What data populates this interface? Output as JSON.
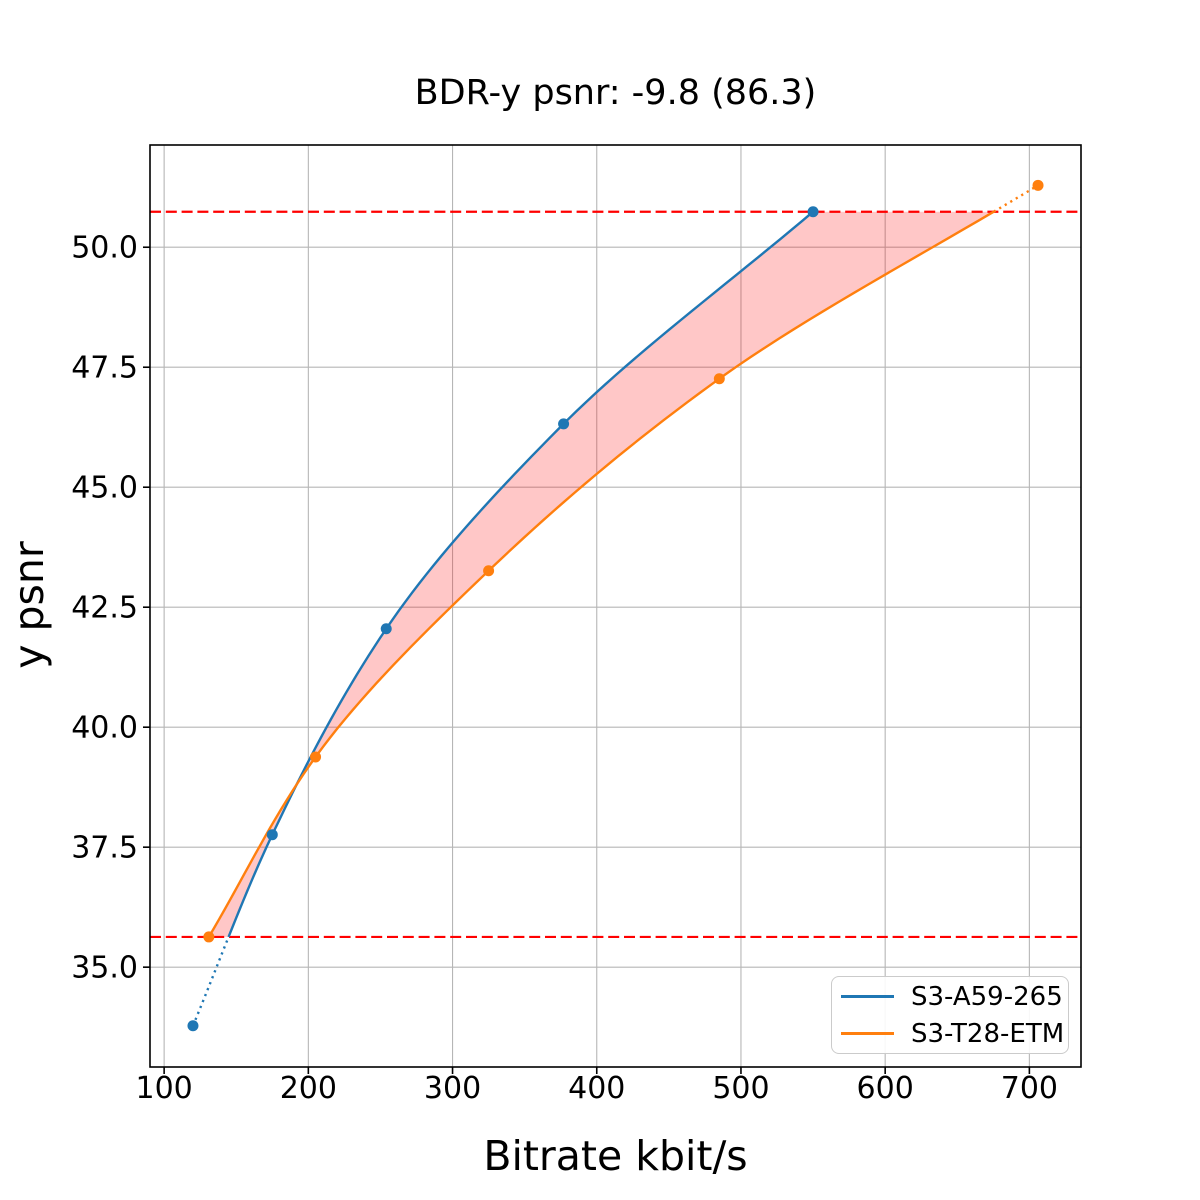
{
  "chart_data": {
    "type": "line",
    "title": "BDR-y psnr: -9.8 (86.3)",
    "xlabel": "Bitrate kbit/s",
    "ylabel": "y psnr",
    "xlim": [
      90.2,
      735.8
    ],
    "ylim": [
      32.92,
      52.13
    ],
    "grid": true,
    "grid_color": "#b6b6b6",
    "xticks": [
      {
        "value": 100,
        "label": "100"
      },
      {
        "value": 200,
        "label": "200"
      },
      {
        "value": 300,
        "label": "300"
      },
      {
        "value": 400,
        "label": "400"
      },
      {
        "value": 500,
        "label": "500"
      },
      {
        "value": 600,
        "label": "600"
      },
      {
        "value": 700,
        "label": "700"
      }
    ],
    "yticks": [
      {
        "value": 35.0,
        "label": "35.0"
      },
      {
        "value": 37.5,
        "label": "37.5"
      },
      {
        "value": 40.0,
        "label": "40.0"
      },
      {
        "value": 42.5,
        "label": "42.5"
      },
      {
        "value": 45.0,
        "label": "45.0"
      },
      {
        "value": 47.5,
        "label": "47.5"
      },
      {
        "value": 50.0,
        "label": "50.0"
      }
    ],
    "series": [
      {
        "name": "S3-A59-265",
        "color": "#1f77b4",
        "marker": "circle",
        "x": [
          120,
          175,
          254,
          377,
          550
        ],
        "y": [
          33.78,
          37.76,
          42.05,
          46.32,
          50.74
        ]
      },
      {
        "name": "S3-T28-ETM",
        "color": "#ff7f0e",
        "marker": "circle",
        "x": [
          131,
          205,
          325,
          485,
          706
        ],
        "y": [
          35.63,
          39.38,
          43.26,
          47.26,
          51.29
        ]
      }
    ],
    "bd_overlap_psnr": {
      "lower": 35.63,
      "upper": 50.74
    },
    "bound_line_color": "#ff0000",
    "bound_line_style": "dashed",
    "fill_color": "rgba(255,0,0,0.22)",
    "excluded_segment_style": "dotted",
    "bd_rate_percent": -9.8,
    "bd_overlap_percent": 86.3,
    "legend_position": "lower right"
  }
}
